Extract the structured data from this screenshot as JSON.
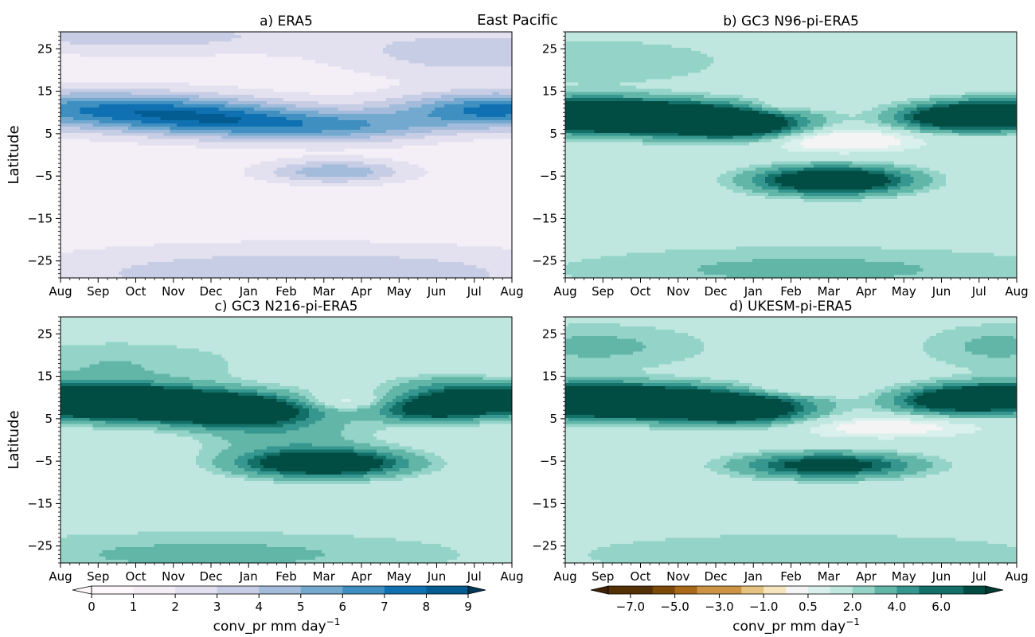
{
  "suptitle": "East Pacific",
  "colors": {
    "seq": [
      "#fff7fb",
      "#f4eef7",
      "#e3e1ef",
      "#c7cde4",
      "#a4bcdb",
      "#74a9cf",
      "#3f8fc1",
      "#0f71b1",
      "#045d92",
      "#023858"
    ],
    "div_neg": [
      "#543005",
      "#7d4a0a",
      "#a86918",
      "#cc9444",
      "#e4c282",
      "#f5e5bd"
    ],
    "div_pos": [
      "#daf0ec",
      "#bfe7df",
      "#94d4c8",
      "#62b6a8",
      "#35978f",
      "#127068",
      "#014d44"
    ],
    "div_neutral": "#f3f4f3"
  },
  "chart_data": [
    {
      "type": "contourf",
      "panel": "a",
      "title": "a) ERA5",
      "ylabel": "Latitude",
      "xticks": [
        "Aug",
        "Sep",
        "Oct",
        "Nov",
        "Dec",
        "Jan",
        "Feb",
        "Mar",
        "Apr",
        "May",
        "Jun",
        "Jul",
        "Aug"
      ],
      "yticks": [
        25,
        15,
        5,
        -5,
        -15,
        -25
      ],
      "ylim": [
        -29,
        29
      ],
      "scale": "seq",
      "features": [
        {
          "x": 0.5,
          "y": 11,
          "amp": 4.3,
          "sx": 2.6,
          "sy": 3.2
        },
        {
          "x": 3.5,
          "y": 9,
          "amp": 3.8,
          "sx": 2.2,
          "sy": 3.0
        },
        {
          "x": 5.3,
          "y": 7,
          "amp": 2.8,
          "sx": 1.8,
          "sy": 2.8
        },
        {
          "x": 8.0,
          "y": 6.5,
          "amp": 3.0,
          "sx": 1.6,
          "sy": 2.6
        },
        {
          "x": 11.6,
          "y": 10.5,
          "amp": 6.0,
          "sx": 1.9,
          "sy": 3.0
        },
        {
          "x": 7.3,
          "y": -4,
          "amp": 3.5,
          "sx": 1.3,
          "sy": 1.9
        },
        {
          "x": 6.5,
          "y": -28,
          "amp": 2.6,
          "sx": 5.0,
          "sy": 4.5
        },
        {
          "x": 2.0,
          "y": 28,
          "amp": 2.1,
          "sx": 3.5,
          "sy": 3.0
        },
        {
          "x": 11.0,
          "y": 24,
          "amp": 2.3,
          "sx": 2.5,
          "sy": 4.0
        }
      ]
    },
    {
      "type": "contourf",
      "panel": "b",
      "title": "b) GC3 N96-pi-ERA5",
      "ylabel": "",
      "xticks": [
        "Aug",
        "Sep",
        "Oct",
        "Nov",
        "Dec",
        "Jan",
        "Feb",
        "Mar",
        "Apr",
        "May",
        "Jun",
        "Jul",
        "Aug"
      ],
      "yticks": [
        25,
        15,
        5,
        -5,
        -15,
        -25
      ],
      "ylim": [
        -29,
        29
      ],
      "scale": "div",
      "features": [
        {
          "x": 0.4,
          "y": 9.5,
          "amp": 8.0,
          "sx": 1.8,
          "sy": 2.4
        },
        {
          "x": 2.7,
          "y": 8.5,
          "amp": 7.0,
          "sx": 1.8,
          "sy": 2.4
        },
        {
          "x": 4.6,
          "y": 7,
          "amp": 5.5,
          "sx": 1.2,
          "sy": 2.3
        },
        {
          "x": 7.1,
          "y": -6,
          "amp": 8.0,
          "sx": 1.3,
          "sy": 2.1
        },
        {
          "x": 10.1,
          "y": 8.5,
          "amp": 3.5,
          "sx": 1.0,
          "sy": 2.0
        },
        {
          "x": 11.6,
          "y": 9.5,
          "amp": 8.0,
          "sx": 1.3,
          "sy": 2.2
        },
        {
          "x": 7.3,
          "y": 3.5,
          "amp": -2.0,
          "sx": 1.5,
          "sy": 2.0
        },
        {
          "x": 5.6,
          "y": 11,
          "amp": -1.3,
          "sx": 0.6,
          "sy": 1.2
        },
        {
          "x": 1.0,
          "y": 22,
          "amp": 1.0,
          "sx": 2.5,
          "sy": 4.0
        },
        {
          "x": 6.5,
          "y": -27,
          "amp": 1.2,
          "sx": 5.0,
          "sy": 4.0
        }
      ]
    },
    {
      "type": "contourf",
      "panel": "c",
      "title": "c) GC3 N216-pi-ERA5",
      "ylabel": "Latitude",
      "xticks": [
        "Aug",
        "Sep",
        "Oct",
        "Nov",
        "Dec",
        "Jan",
        "Feb",
        "Mar",
        "Apr",
        "May",
        "Jun",
        "Jul",
        "Aug"
      ],
      "yticks": [
        25,
        15,
        5,
        -5,
        -15,
        -25
      ],
      "ylim": [
        -29,
        29
      ],
      "scale": "div",
      "features": [
        {
          "x": 0.5,
          "y": 9.5,
          "amp": 8.0,
          "sx": 1.9,
          "sy": 2.5
        },
        {
          "x": 2.9,
          "y": 8,
          "amp": 7.0,
          "sx": 1.9,
          "sy": 2.4
        },
        {
          "x": 4.8,
          "y": 6.5,
          "amp": 5.5,
          "sx": 1.2,
          "sy": 2.3
        },
        {
          "x": 7.0,
          "y": -5.5,
          "amp": 7.5,
          "sx": 1.4,
          "sy": 2.1
        },
        {
          "x": 9.8,
          "y": 7,
          "amp": 4.0,
          "sx": 1.0,
          "sy": 2.0
        },
        {
          "x": 11.5,
          "y": 9.5,
          "amp": 7.5,
          "sx": 1.4,
          "sy": 2.3
        },
        {
          "x": 7.5,
          "y": 9,
          "amp": -1.5,
          "sx": 0.9,
          "sy": 1.3
        },
        {
          "x": 10.0,
          "y": 13.5,
          "amp": 0.8,
          "sx": 1.0,
          "sy": 1.5
        },
        {
          "x": 6.0,
          "y": 1,
          "amp": 1.5,
          "sx": 1.5,
          "sy": 4.0
        },
        {
          "x": 4.0,
          "y": -27,
          "amp": 1.2,
          "sx": 5.0,
          "sy": 4.0
        },
        {
          "x": 1.5,
          "y": 18,
          "amp": 1.0,
          "sx": 2.5,
          "sy": 4.0
        }
      ]
    },
    {
      "type": "contourf",
      "panel": "d",
      "title": "d) UKESM-pi-ERA5",
      "ylabel": "",
      "xticks": [
        "Aug",
        "Sep",
        "Oct",
        "Nov",
        "Dec",
        "Jan",
        "Feb",
        "Mar",
        "Apr",
        "May",
        "Jun",
        "Jul",
        "Aug"
      ],
      "yticks": [
        25,
        15,
        5,
        -5,
        -15,
        -25
      ],
      "ylim": [
        -29,
        29
      ],
      "scale": "div",
      "features": [
        {
          "x": 0.4,
          "y": 9.5,
          "amp": 8.0,
          "sx": 1.8,
          "sy": 2.4
        },
        {
          "x": 2.8,
          "y": 8.5,
          "amp": 7.0,
          "sx": 1.9,
          "sy": 2.4
        },
        {
          "x": 4.7,
          "y": 7,
          "amp": 5.0,
          "sx": 1.2,
          "sy": 2.3
        },
        {
          "x": 7.0,
          "y": -6,
          "amp": 5.5,
          "sx": 1.5,
          "sy": 1.9
        },
        {
          "x": 10.1,
          "y": 9,
          "amp": 3.5,
          "sx": 1.0,
          "sy": 2.0
        },
        {
          "x": 11.6,
          "y": 10,
          "amp": 7.5,
          "sx": 1.3,
          "sy": 2.2
        },
        {
          "x": 8.5,
          "y": 3,
          "amp": -1.5,
          "sx": 1.8,
          "sy": 1.8
        },
        {
          "x": 5.8,
          "y": 11.5,
          "amp": -1.2,
          "sx": 1.0,
          "sy": 1.2
        },
        {
          "x": 0.8,
          "y": 22,
          "amp": 1.2,
          "sx": 2.2,
          "sy": 4.0
        },
        {
          "x": 11.5,
          "y": 22,
          "amp": 1.2,
          "sx": 1.5,
          "sy": 4.0
        },
        {
          "x": 6.5,
          "y": -27,
          "amp": 1.0,
          "sx": 5.0,
          "sy": 4.0
        }
      ]
    }
  ],
  "colorbars": [
    {
      "name": "sequential",
      "label": "conv_pr mm day",
      "label_exp": "−1",
      "levels": [
        0,
        1,
        2,
        3,
        4,
        5,
        6,
        7,
        8,
        9
      ],
      "tick_values": [
        0,
        1,
        2,
        3,
        4,
        5,
        6,
        7,
        8,
        9
      ],
      "tick_labels": [
        "0",
        "1",
        "2",
        "3",
        "4",
        "5",
        "6",
        "7",
        "8",
        "9"
      ]
    },
    {
      "name": "diverging",
      "label": "conv_pr mm day",
      "label_exp": "−1",
      "levels": [
        -8.0,
        -7.0,
        -6.0,
        -5.0,
        -4.0,
        -3.0,
        -2.0,
        -1.0,
        -0.5,
        0.5,
        1.0,
        2.0,
        3.0,
        4.0,
        5.0,
        6.0,
        7.0,
        8.0
      ],
      "tick_values": [
        -7.0,
        -5.0,
        -3.0,
        -1.0,
        0.5,
        2.0,
        4.0,
        6.0
      ],
      "tick_labels": [
        "−7.0",
        "−5.0",
        "−3.0",
        "−1.0",
        "0.5",
        "2.0",
        "4.0",
        "6.0"
      ]
    }
  ]
}
